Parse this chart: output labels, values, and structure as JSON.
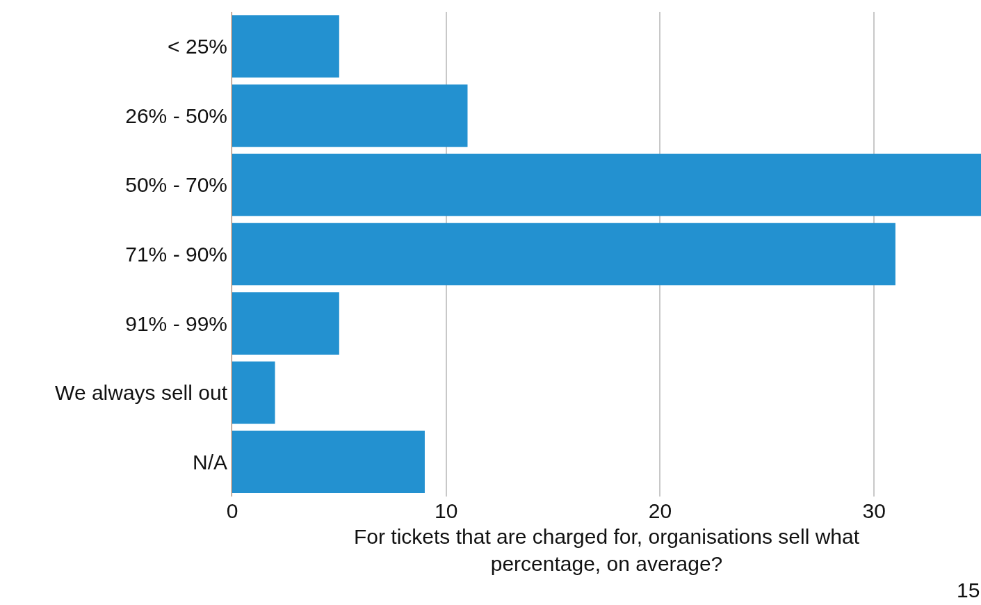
{
  "chart_data": {
    "type": "bar",
    "orientation": "horizontal",
    "xlabel": "For tickets that are charged for, organisations sell what percentage, on average?",
    "categories": [
      "< 25%",
      "26% - 50%",
      "50% - 70%",
      "71% - 90%",
      "91% - 99%",
      "We always sell out",
      "N/A"
    ],
    "values": [
      5,
      11,
      35,
      31,
      5,
      2,
      9
    ],
    "color": "#2391d0",
    "xlim": [
      0,
      35
    ],
    "xticks": [
      0,
      10,
      20,
      30
    ],
    "grid": "x",
    "legend": false,
    "annotations": [
      "15"
    ]
  }
}
